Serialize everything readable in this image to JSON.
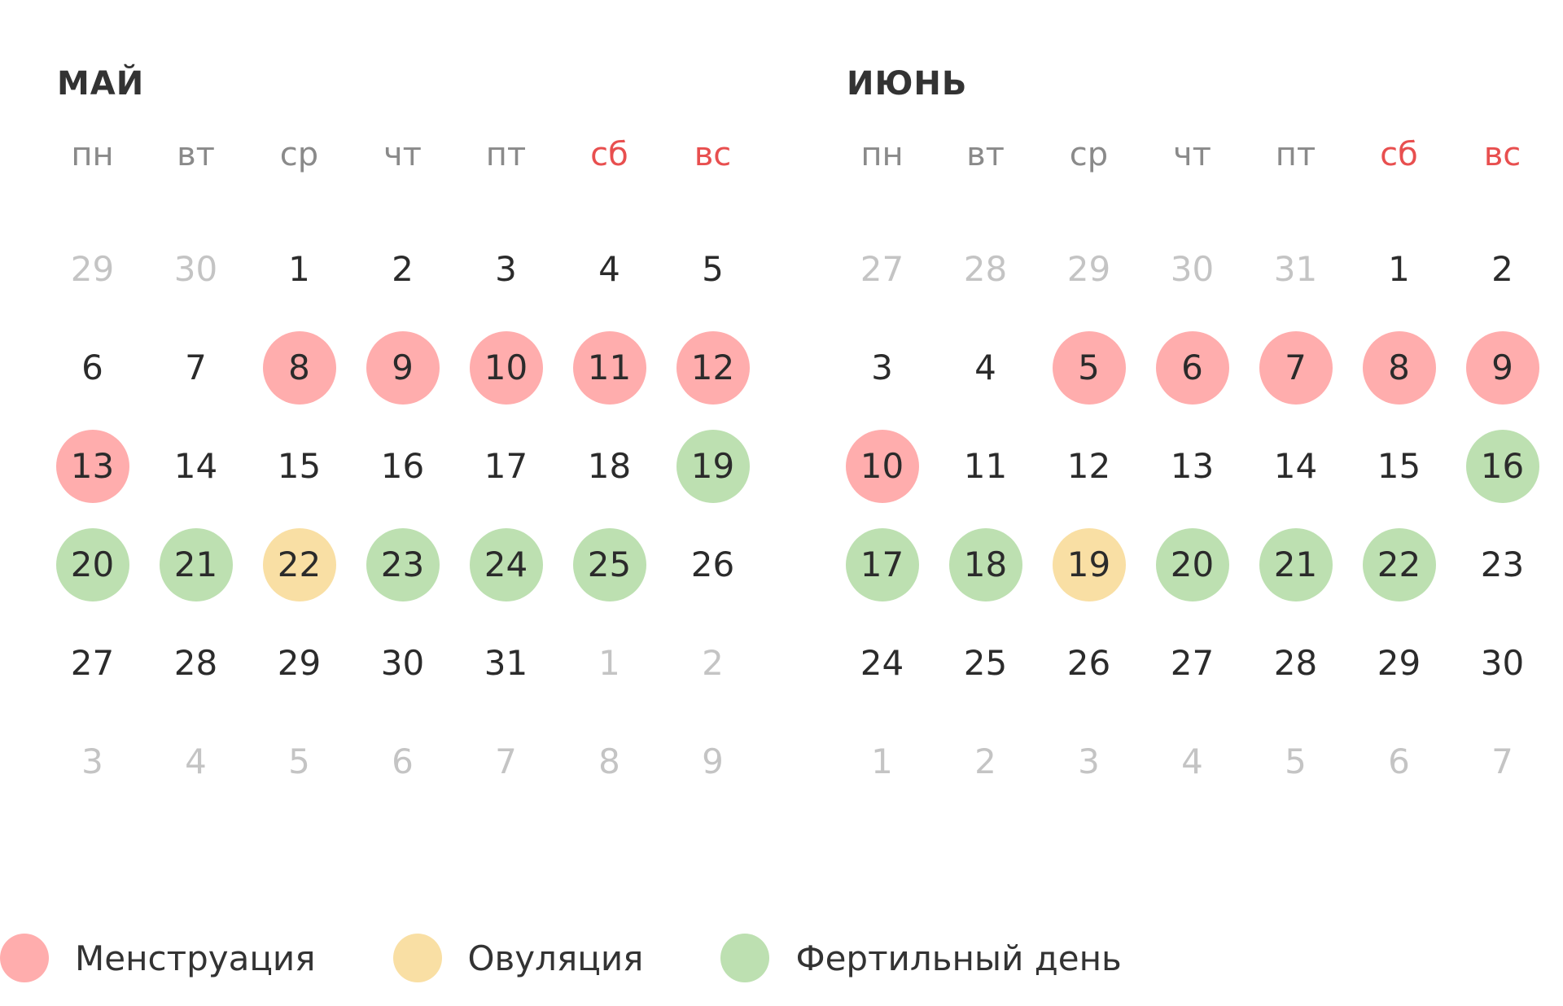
{
  "colors": {
    "menstruation": "#ffadad",
    "ovulation": "#f9dfa4",
    "fertile": "#bde0b1",
    "weekend_label": "#e84f4f"
  },
  "weekdays": [
    {
      "label": "пн",
      "weekend": false
    },
    {
      "label": "вт",
      "weekend": false
    },
    {
      "label": "ср",
      "weekend": false
    },
    {
      "label": "чт",
      "weekend": false
    },
    {
      "label": "пт",
      "weekend": false
    },
    {
      "label": "сб",
      "weekend": true
    },
    {
      "label": "вс",
      "weekend": true
    }
  ],
  "months": [
    {
      "key": "may",
      "title": "МАЙ",
      "days": [
        {
          "n": "29",
          "other": true
        },
        {
          "n": "30",
          "other": true
        },
        {
          "n": "1"
        },
        {
          "n": "2"
        },
        {
          "n": "3"
        },
        {
          "n": "4"
        },
        {
          "n": "5"
        },
        {
          "n": "6"
        },
        {
          "n": "7"
        },
        {
          "n": "8",
          "type": "menstruation"
        },
        {
          "n": "9",
          "type": "menstruation"
        },
        {
          "n": "10",
          "type": "menstruation"
        },
        {
          "n": "11",
          "type": "menstruation"
        },
        {
          "n": "12",
          "type": "menstruation"
        },
        {
          "n": "13",
          "type": "menstruation"
        },
        {
          "n": "14"
        },
        {
          "n": "15"
        },
        {
          "n": "16"
        },
        {
          "n": "17"
        },
        {
          "n": "18"
        },
        {
          "n": "19",
          "type": "fertile"
        },
        {
          "n": "20",
          "type": "fertile"
        },
        {
          "n": "21",
          "type": "fertile"
        },
        {
          "n": "22",
          "type": "ovulation"
        },
        {
          "n": "23",
          "type": "fertile"
        },
        {
          "n": "24",
          "type": "fertile"
        },
        {
          "n": "25",
          "type": "fertile"
        },
        {
          "n": "26"
        },
        {
          "n": "27"
        },
        {
          "n": "28"
        },
        {
          "n": "29"
        },
        {
          "n": "30"
        },
        {
          "n": "31"
        },
        {
          "n": "1",
          "other": true
        },
        {
          "n": "2",
          "other": true
        },
        {
          "n": "3",
          "other": true
        },
        {
          "n": "4",
          "other": true
        },
        {
          "n": "5",
          "other": true
        },
        {
          "n": "6",
          "other": true
        },
        {
          "n": "7",
          "other": true
        },
        {
          "n": "8",
          "other": true
        },
        {
          "n": "9",
          "other": true
        }
      ]
    },
    {
      "key": "june",
      "title": "ИЮНЬ",
      "days": [
        {
          "n": "27",
          "other": true
        },
        {
          "n": "28",
          "other": true
        },
        {
          "n": "29",
          "other": true
        },
        {
          "n": "30",
          "other": true
        },
        {
          "n": "31",
          "other": true
        },
        {
          "n": "1"
        },
        {
          "n": "2"
        },
        {
          "n": "3"
        },
        {
          "n": "4"
        },
        {
          "n": "5",
          "type": "menstruation"
        },
        {
          "n": "6",
          "type": "menstruation"
        },
        {
          "n": "7",
          "type": "menstruation"
        },
        {
          "n": "8",
          "type": "menstruation"
        },
        {
          "n": "9",
          "type": "menstruation"
        },
        {
          "n": "10",
          "type": "menstruation"
        },
        {
          "n": "11"
        },
        {
          "n": "12"
        },
        {
          "n": "13"
        },
        {
          "n": "14"
        },
        {
          "n": "15"
        },
        {
          "n": "16",
          "type": "fertile"
        },
        {
          "n": "17",
          "type": "fertile"
        },
        {
          "n": "18",
          "type": "fertile"
        },
        {
          "n": "19",
          "type": "ovulation"
        },
        {
          "n": "20",
          "type": "fertile"
        },
        {
          "n": "21",
          "type": "fertile"
        },
        {
          "n": "22",
          "type": "fertile"
        },
        {
          "n": "23"
        },
        {
          "n": "24"
        },
        {
          "n": "25"
        },
        {
          "n": "26"
        },
        {
          "n": "27"
        },
        {
          "n": "28"
        },
        {
          "n": "29"
        },
        {
          "n": "30"
        },
        {
          "n": "1",
          "other": true
        },
        {
          "n": "2",
          "other": true
        },
        {
          "n": "3",
          "other": true
        },
        {
          "n": "4",
          "other": true
        },
        {
          "n": "5",
          "other": true
        },
        {
          "n": "6",
          "other": true
        },
        {
          "n": "7",
          "other": true
        }
      ]
    }
  ],
  "legend": [
    {
      "key": "menstruation",
      "label": "Менструация"
    },
    {
      "key": "ovulation",
      "label": "Овуляция"
    },
    {
      "key": "fertile",
      "label": "Фертильный день"
    }
  ]
}
